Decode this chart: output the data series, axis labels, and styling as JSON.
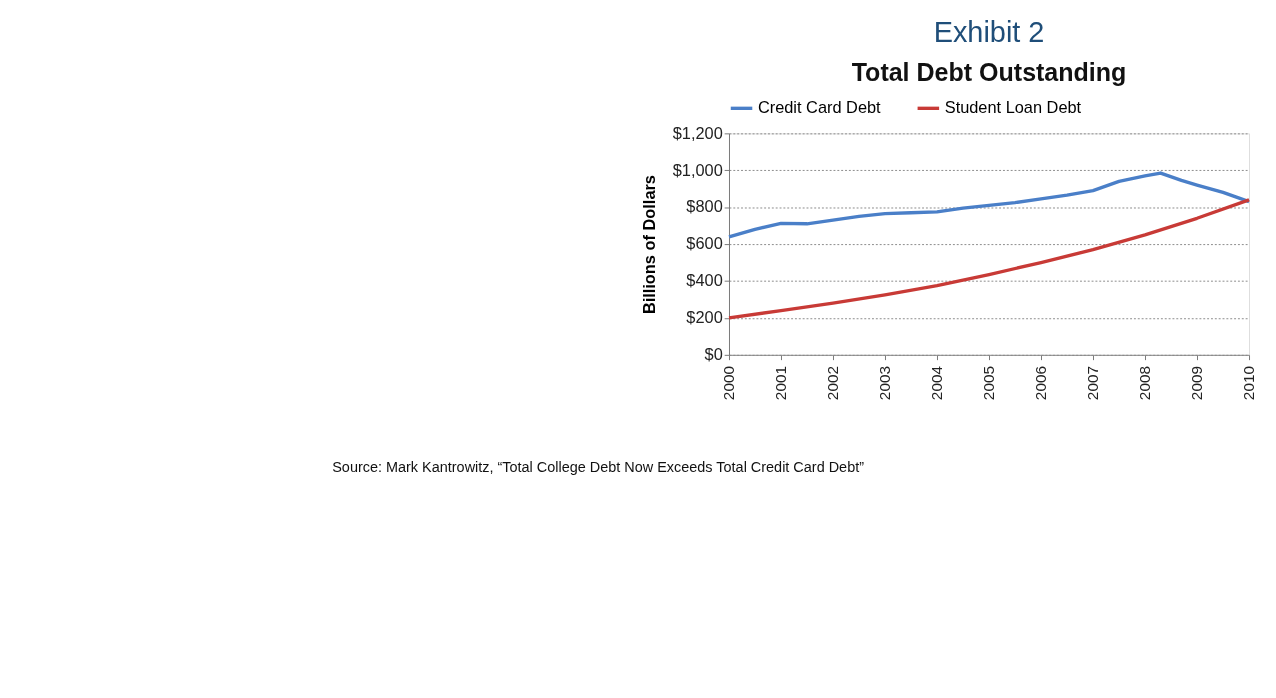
{
  "chart_data": {
    "type": "line",
    "title": "Exhibit 2",
    "subtitle": "Total Debt Outstanding",
    "ylabel": "Billions of Dollars",
    "series": [
      {
        "name": "Credit Card Debt",
        "color": "#4a7fc8",
        "x": [
          2000,
          2000.5,
          2001,
          2001.5,
          2002,
          2002.5,
          2003,
          2003.5,
          2004,
          2004.5,
          2005,
          2005.5,
          2006,
          2006.5,
          2007,
          2007.5,
          2008,
          2008.3,
          2008.7,
          2009,
          2009.5,
          2010
        ],
        "values": [
          639,
          680,
          712,
          710,
          730,
          750,
          765,
          770,
          775,
          795,
          810,
          825,
          845,
          865,
          890,
          940,
          970,
          985,
          945,
          920,
          880,
          830
        ]
      },
      {
        "name": "Student Loan Debt",
        "color": "#c83a36",
        "x": [
          2000,
          2001,
          2002,
          2003,
          2004,
          2005,
          2006,
          2007,
          2008,
          2009,
          2010
        ],
        "values": [
          200,
          240,
          280,
          325,
          375,
          435,
          500,
          570,
          650,
          740,
          840
        ]
      }
    ],
    "xlim": [
      2000,
      2010
    ],
    "xticks": [
      2000,
      2001,
      2002,
      2003,
      2004,
      2005,
      2006,
      2007,
      2008,
      2009,
      2010
    ],
    "ylim": [
      0,
      1200
    ],
    "yticks": [
      {
        "value": 0,
        "label": "$0"
      },
      {
        "value": 200,
        "label": "$200"
      },
      {
        "value": 400,
        "label": "$400"
      },
      {
        "value": 600,
        "label": "$600"
      },
      {
        "value": 800,
        "label": "$800"
      },
      {
        "value": 1000,
        "label": "$1,000"
      },
      {
        "value": 1200,
        "label": "$1,200"
      }
    ],
    "grid": "y",
    "legend": "top",
    "line_style": "solid",
    "marker": "none",
    "annotations": [
      "Source: Mark Kantrowitz, “Total College Debt Now Exceeds Total Credit Card Debt”"
    ]
  }
}
